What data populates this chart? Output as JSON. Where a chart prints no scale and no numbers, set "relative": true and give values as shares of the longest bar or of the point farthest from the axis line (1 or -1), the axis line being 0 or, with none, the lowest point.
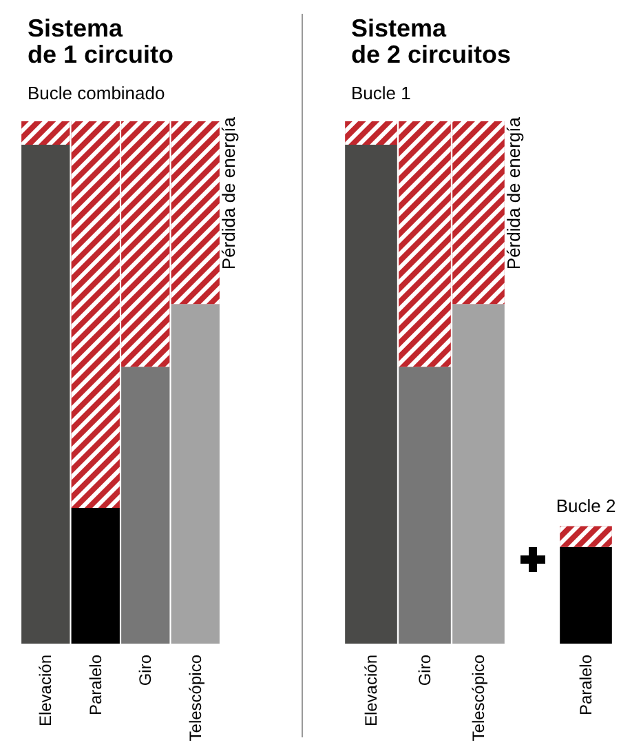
{
  "chart_data": [
    {
      "type": "bar",
      "stacked": true,
      "relative": true,
      "title": "Sistema de 1 circuito",
      "subtitle": "Bucle combinado",
      "categories": [
        "Elevación",
        "Paralelo",
        "Giro",
        "Telescópico"
      ],
      "series": [
        {
          "colors": [
            "#4a4a48",
            "#000000",
            "#777777",
            "#a3a3a3"
          ],
          "values": [
            0.955,
            0.26,
            0.53,
            0.65
          ]
        },
        {
          "name": "Pérdida de energía",
          "color": "#c1272d",
          "values": [
            0.045,
            0.74,
            0.47,
            0.35
          ]
        }
      ]
    },
    {
      "type": "bar",
      "stacked": true,
      "relative": true,
      "title": "Sistema de 2 circuitos",
      "subtitle": "Bucle 1",
      "categories": [
        "Elevación",
        "Giro",
        "Telescópico",
        null,
        "Paralelo"
      ],
      "annotations": [
        "Bucle 2"
      ],
      "series": [
        {
          "colors": [
            "#4a4a48",
            "#777777",
            "#a3a3a3",
            null,
            "#000000"
          ],
          "values": [
            0.955,
            0.53,
            0.65,
            null,
            0.185
          ]
        },
        {
          "name": "Pérdida de energía",
          "color": "#c1272d",
          "values": [
            0.045,
            0.47,
            0.35,
            null,
            0.04
          ]
        }
      ]
    }
  ]
}
